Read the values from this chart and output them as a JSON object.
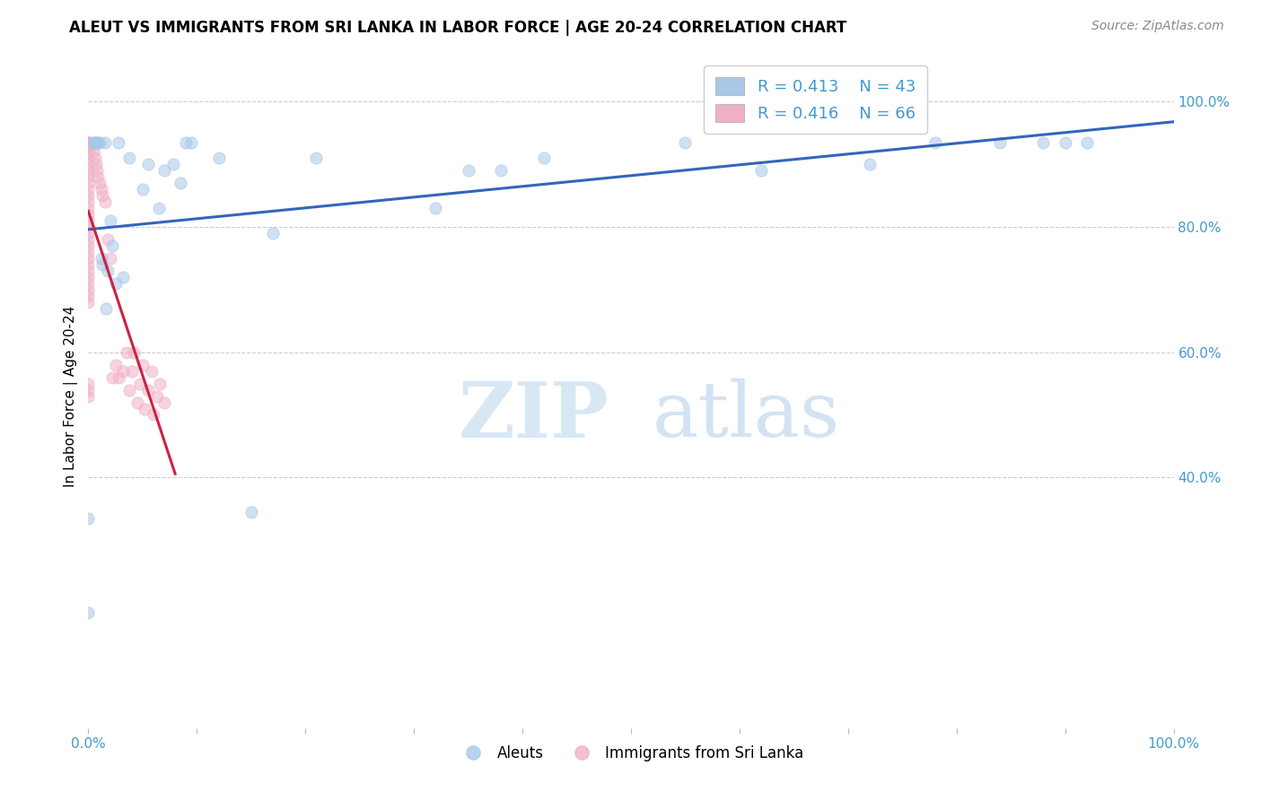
{
  "title": "ALEUT VS IMMIGRANTS FROM SRI LANKA IN LABOR FORCE | AGE 20-24 CORRELATION CHART",
  "source": "Source: ZipAtlas.com",
  "ylabel": "In Labor Force | Age 20-24",
  "watermark_zip": "ZIP",
  "watermark_atlas": "atlas",
  "legend_blue_r": "R = 0.413",
  "legend_blue_n": "N = 43",
  "legend_pink_r": "R = 0.416",
  "legend_pink_n": "N = 66",
  "aleuts_x": [
    0.0,
    0.0,
    0.005,
    0.006,
    0.007,
    0.008,
    0.009,
    0.01,
    0.012,
    0.013,
    0.015,
    0.016,
    0.018,
    0.02,
    0.022,
    0.025,
    0.028,
    0.032,
    0.038,
    0.05,
    0.055,
    0.065,
    0.07,
    0.078,
    0.085,
    0.09,
    0.095,
    0.12,
    0.15,
    0.17,
    0.21,
    0.32,
    0.35,
    0.38,
    0.42,
    0.55,
    0.62,
    0.72,
    0.78,
    0.84,
    0.88,
    0.9,
    0.92
  ],
  "aleuts_y": [
    0.185,
    0.335,
    0.935,
    0.935,
    0.935,
    0.935,
    0.935,
    0.935,
    0.75,
    0.74,
    0.935,
    0.67,
    0.73,
    0.81,
    0.77,
    0.71,
    0.935,
    0.72,
    0.91,
    0.86,
    0.9,
    0.83,
    0.89,
    0.9,
    0.87,
    0.935,
    0.935,
    0.91,
    0.345,
    0.79,
    0.91,
    0.83,
    0.89,
    0.89,
    0.91,
    0.935,
    0.89,
    0.9,
    0.935,
    0.935,
    0.935,
    0.935,
    0.935
  ],
  "sri_lanka_x": [
    0.0,
    0.0,
    0.0,
    0.0,
    0.0,
    0.0,
    0.0,
    0.0,
    0.0,
    0.0,
    0.0,
    0.0,
    0.0,
    0.0,
    0.0,
    0.0,
    0.0,
    0.0,
    0.0,
    0.0,
    0.0,
    0.0,
    0.0,
    0.0,
    0.0,
    0.0,
    0.0,
    0.0,
    0.0,
    0.0,
    0.0,
    0.0,
    0.0,
    0.0,
    0.0,
    0.003,
    0.004,
    0.005,
    0.006,
    0.007,
    0.008,
    0.009,
    0.01,
    0.012,
    0.013,
    0.015,
    0.018,
    0.02,
    0.022,
    0.025,
    0.028,
    0.032,
    0.035,
    0.038,
    0.04,
    0.042,
    0.045,
    0.048,
    0.05,
    0.052,
    0.055,
    0.058,
    0.06,
    0.063,
    0.066,
    0.07
  ],
  "sri_lanka_y": [
    0.935,
    0.935,
    0.935,
    0.935,
    0.935,
    0.935,
    0.93,
    0.92,
    0.91,
    0.9,
    0.89,
    0.88,
    0.87,
    0.86,
    0.85,
    0.84,
    0.83,
    0.82,
    0.81,
    0.8,
    0.79,
    0.78,
    0.77,
    0.76,
    0.75,
    0.74,
    0.73,
    0.72,
    0.71,
    0.7,
    0.69,
    0.68,
    0.55,
    0.54,
    0.53,
    0.935,
    0.93,
    0.92,
    0.91,
    0.9,
    0.89,
    0.88,
    0.87,
    0.86,
    0.85,
    0.84,
    0.78,
    0.75,
    0.56,
    0.58,
    0.56,
    0.57,
    0.6,
    0.54,
    0.57,
    0.6,
    0.52,
    0.55,
    0.58,
    0.51,
    0.54,
    0.57,
    0.5,
    0.53,
    0.55,
    0.52
  ],
  "blue_color": "#a8c8e8",
  "pink_color": "#f0b0c8",
  "blue_line_color": "#3366bb",
  "pink_line_color": "#cc2244",
  "grid_color": "#cccccc",
  "axis_tick_color": "#4499cc",
  "background_color": "#ffffff",
  "title_fontsize": 12,
  "source_fontsize": 10,
  "marker_size": 90,
  "marker_alpha": 0.55,
  "line_width": 2.2,
  "xlim": [
    0.0,
    1.0
  ],
  "ylim": [
    0.0,
    1.06
  ],
  "yticks": [
    0.4,
    0.6,
    0.8,
    1.0
  ],
  "ytick_labels": [
    "40.0%",
    "60.0%",
    "80.0%",
    "100.0%"
  ],
  "xticks": [
    0.0,
    0.1,
    0.2,
    0.3,
    0.4,
    0.5,
    0.6,
    0.7,
    0.8,
    0.9,
    1.0
  ],
  "xtick_labels": [
    "0.0%",
    "",
    "",
    "",
    "",
    "",
    "",
    "",
    "",
    "",
    "100.0%"
  ]
}
